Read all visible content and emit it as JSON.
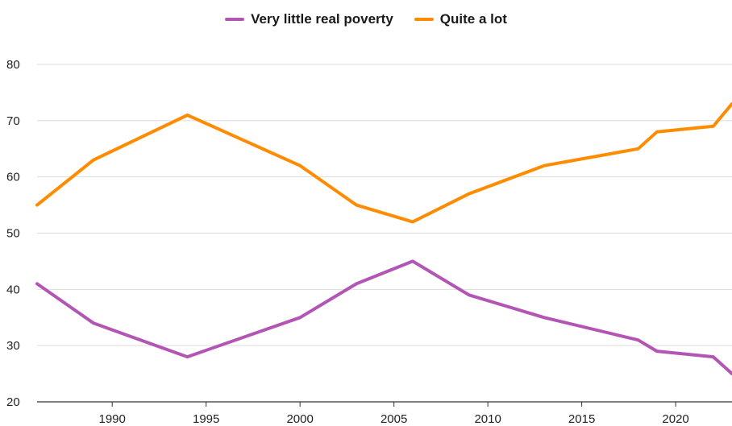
{
  "chart_data": {
    "type": "line",
    "title": "",
    "xlabel": "",
    "ylabel": "",
    "xlim": [
      1986,
      2023
    ],
    "ylim": [
      20,
      80
    ],
    "yticks": [
      20,
      30,
      40,
      50,
      60,
      70,
      80
    ],
    "xticks": [
      1990,
      1995,
      2000,
      2005,
      2010,
      2015,
      2020
    ],
    "grid": "horizontal",
    "legend_position": "top-center",
    "series": [
      {
        "name": "Very little real poverty",
        "color": "#b355b5",
        "points": [
          [
            1986,
            41
          ],
          [
            1989,
            34
          ],
          [
            1994,
            28
          ],
          [
            2000,
            35
          ],
          [
            2003,
            41
          ],
          [
            2006,
            45
          ],
          [
            2009,
            39
          ],
          [
            2013,
            35
          ],
          [
            2018,
            31
          ],
          [
            2019,
            29
          ],
          [
            2022,
            28
          ],
          [
            2023,
            25
          ]
        ]
      },
      {
        "name": "Quite a lot",
        "color": "#ff8c00",
        "points": [
          [
            1986,
            55
          ],
          [
            1989,
            63
          ],
          [
            1994,
            71
          ],
          [
            2000,
            62
          ],
          [
            2003,
            55
          ],
          [
            2006,
            52
          ],
          [
            2009,
            57
          ],
          [
            2013,
            62
          ],
          [
            2018,
            65
          ],
          [
            2019,
            68
          ],
          [
            2022,
            69
          ],
          [
            2023,
            73
          ]
        ]
      }
    ]
  }
}
